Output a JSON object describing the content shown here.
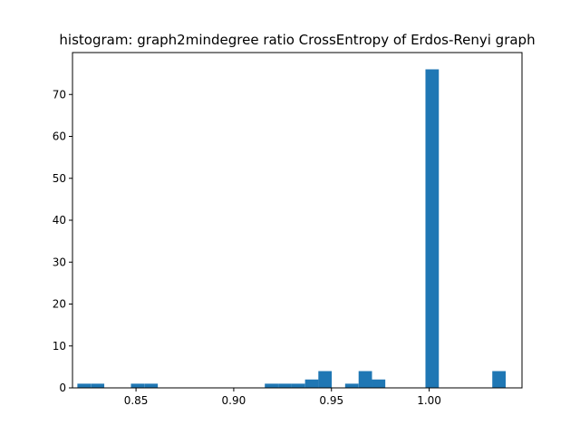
{
  "chart_data": {
    "type": "bar",
    "title": "histogram: graph2mindegree ratio CrossEntropy of Erdos-Renyi graph",
    "xlabel": "",
    "ylabel": "",
    "xlim": [
      0.8175,
      1.0475
    ],
    "ylim": [
      0,
      80
    ],
    "bin_width": 0.00685,
    "bar_color": "#1f77b4",
    "x_ticks": [
      {
        "value": 0.85,
        "label": "0.85"
      },
      {
        "value": 0.9,
        "label": "0.90"
      },
      {
        "value": 0.95,
        "label": "0.95"
      },
      {
        "value": 1.0,
        "label": "1.00"
      }
    ],
    "y_ticks": [
      {
        "value": 0,
        "label": "0"
      },
      {
        "value": 10,
        "label": "10"
      },
      {
        "value": 20,
        "label": "20"
      },
      {
        "value": 30,
        "label": "30"
      },
      {
        "value": 40,
        "label": "40"
      },
      {
        "value": 50,
        "label": "50"
      },
      {
        "value": 60,
        "label": "60"
      },
      {
        "value": 70,
        "label": "70"
      }
    ],
    "bins": [
      {
        "start": 0.82,
        "count": 1
      },
      {
        "start": 0.8269,
        "count": 1
      },
      {
        "start": 0.8474,
        "count": 1
      },
      {
        "start": 0.8543,
        "count": 1
      },
      {
        "start": 0.9159,
        "count": 1
      },
      {
        "start": 0.9228,
        "count": 1
      },
      {
        "start": 0.9296,
        "count": 1
      },
      {
        "start": 0.9365,
        "count": 2
      },
      {
        "start": 0.9433,
        "count": 4
      },
      {
        "start": 0.957,
        "count": 1
      },
      {
        "start": 0.9639,
        "count": 4
      },
      {
        "start": 0.9707,
        "count": 2
      },
      {
        "start": 0.9981,
        "count": 76
      },
      {
        "start": 1.0323,
        "count": 4
      }
    ]
  }
}
